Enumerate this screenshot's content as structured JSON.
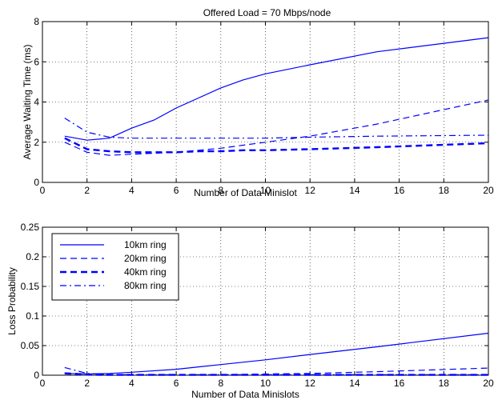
{
  "chart_data": [
    {
      "type": "line",
      "title": "Offered Load = 70 Mbps/node",
      "xlabel": "Number of Data Minislot",
      "ylabel": "Average Waiting Time (ms)",
      "xlim": [
        0,
        20
      ],
      "ylim": [
        0,
        8
      ],
      "xticks": [
        "0",
        "2",
        "4",
        "6",
        "8",
        "10",
        "12",
        "14",
        "16",
        "18",
        "20"
      ],
      "yticks": [
        "0",
        "2",
        "4",
        "6",
        "8"
      ],
      "grid": true,
      "color": "#0000ff",
      "series": [
        {
          "style": "solid",
          "x": [
            1,
            2,
            3,
            4,
            5,
            6,
            7,
            8,
            9,
            10,
            12,
            15,
            20
          ],
          "y": [
            2.3,
            2.1,
            2.2,
            2.7,
            3.1,
            3.7,
            4.2,
            4.7,
            5.1,
            5.4,
            5.85,
            6.5,
            7.2
          ]
        },
        {
          "style": "dashed",
          "x": [
            1,
            2,
            3,
            4,
            5,
            6,
            7,
            8,
            9,
            10,
            12,
            15,
            20
          ],
          "y": [
            2.0,
            1.5,
            1.35,
            1.4,
            1.45,
            1.5,
            1.6,
            1.7,
            1.85,
            2.0,
            2.3,
            2.9,
            4.1
          ]
        },
        {
          "style": "thick-dashed",
          "x": [
            1,
            2,
            3,
            4,
            5,
            6,
            7,
            8,
            9,
            10,
            12,
            15,
            20
          ],
          "y": [
            2.2,
            1.65,
            1.55,
            1.5,
            1.5,
            1.5,
            1.55,
            1.55,
            1.6,
            1.6,
            1.65,
            1.75,
            1.95
          ]
        },
        {
          "style": "dashdot",
          "x": [
            1,
            2,
            3,
            4,
            5,
            6,
            7,
            8,
            9,
            10,
            12,
            15,
            20
          ],
          "y": [
            3.2,
            2.5,
            2.25,
            2.2,
            2.2,
            2.2,
            2.2,
            2.2,
            2.2,
            2.2,
            2.25,
            2.3,
            2.35
          ]
        }
      ]
    },
    {
      "type": "line",
      "title": "",
      "xlabel": "Number of Data Minislots",
      "ylabel": "Loss Probability",
      "xlim": [
        0,
        20
      ],
      "ylim": [
        0,
        0.25
      ],
      "xticks": [
        "0",
        "2",
        "4",
        "6",
        "8",
        "10",
        "12",
        "14",
        "16",
        "18",
        "20"
      ],
      "yticks": [
        "0",
        "0.05",
        "0.1",
        "0.15",
        "0.2",
        "0.25"
      ],
      "grid": true,
      "color": "#0000ff",
      "legend": {
        "placement": "top-left",
        "entries": [
          {
            "label": "10km ring",
            "style": "solid"
          },
          {
            "label": "20km ring",
            "style": "dashed"
          },
          {
            "label": "40km ring",
            "style": "thick-dashed"
          },
          {
            "label": "80km ring",
            "style": "dashdot"
          }
        ]
      },
      "series": [
        {
          "name": "10km ring",
          "style": "solid",
          "x": [
            1,
            2,
            3,
            4,
            6,
            8,
            10,
            12,
            15,
            20
          ],
          "y": [
            0.003,
            0.002,
            0.003,
            0.005,
            0.01,
            0.018,
            0.026,
            0.035,
            0.048,
            0.071
          ]
        },
        {
          "name": "20km ring",
          "style": "dashed",
          "x": [
            1,
            2,
            3,
            4,
            6,
            8,
            10,
            12,
            15,
            20
          ],
          "y": [
            0.004,
            0.002,
            0.001,
            0.001,
            0.001,
            0.001,
            0.002,
            0.003,
            0.006,
            0.012
          ]
        },
        {
          "name": "40km ring",
          "style": "thick-dashed",
          "x": [
            1,
            2,
            3,
            4,
            6,
            8,
            10,
            12,
            15,
            20
          ],
          "y": [
            0.003,
            0.001,
            0.0005,
            0.0005,
            0.0005,
            0.0005,
            0.0005,
            0.0005,
            0.0005,
            0.0005
          ]
        },
        {
          "name": "80km ring",
          "style": "dashdot",
          "x": [
            1,
            2,
            3,
            4,
            6,
            8,
            10,
            12,
            15,
            20
          ],
          "y": [
            0.013,
            0.003,
            0.001,
            0.001,
            0.001,
            0.001,
            0.001,
            0.001,
            0.001,
            0.001
          ]
        }
      ]
    }
  ]
}
